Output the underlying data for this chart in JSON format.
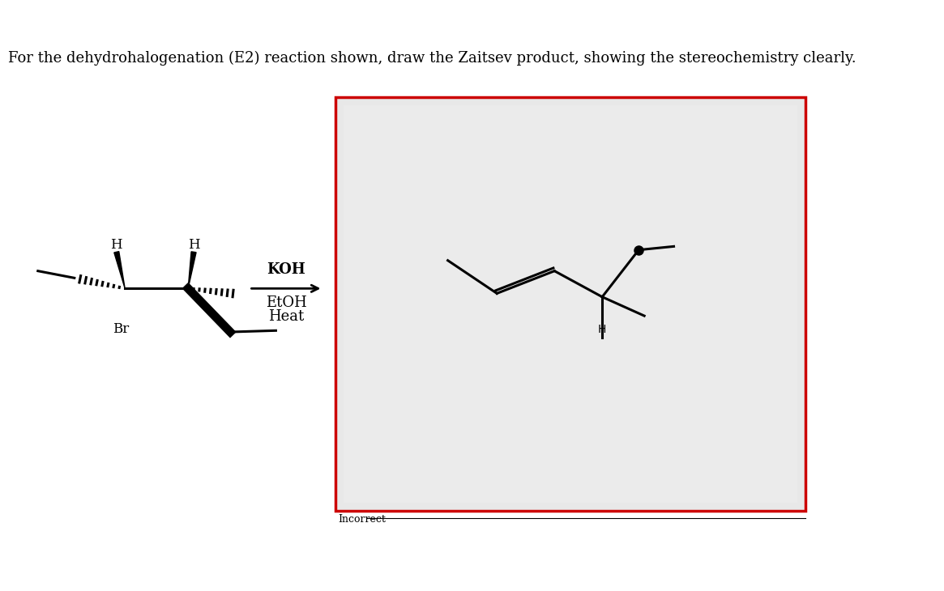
{
  "title_text": "For the dehydrohalogenation (E2) reaction shown, draw the Zaitsev product, showing the stereochemistry clearly.",
  "title_fontsize": 13,
  "bg_color": "#ffffff",
  "answer_box_bg": "#e8e8e8",
  "answer_box_border": "#cc0000",
  "incorrect_label": "Incorrect",
  "incorrect_fontsize": 9,
  "reagent_koh": "KOH",
  "reagent_etoh": "EtOH",
  "reagent_heat": "Heat",
  "reagent_fontsize": 13
}
